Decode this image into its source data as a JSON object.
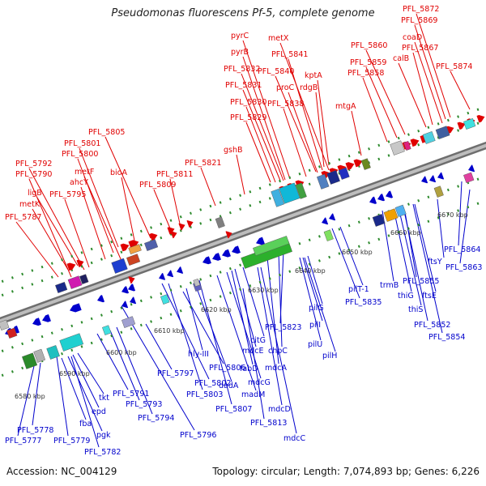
{
  "title": "Pseudomonas fluorescens Pf-5, complete genome",
  "footer": {
    "accession": "Accession: NC_004129",
    "summary": "Topology: circular; Length: 7,074,893 bp; Genes: 6,226"
  },
  "colors": {
    "top_strand": "#e00000",
    "bottom_strand": "#0000cc",
    "backbone": "#9a9a9a",
    "dots": "#2e8b2e"
  },
  "kbp_labels": [
    "6580 kbp",
    "6590 kbp",
    "6600 kbp",
    "6610 kbp",
    "6620 kbp",
    "6630 kbp",
    "6640 kbp",
    "6650 kbp",
    "6660 kbp",
    "6670 kbp"
  ],
  "top_labels": [
    "PFL_5787",
    "metK",
    "ligB",
    "PFL_5790",
    "PFL_5792",
    "PFL_5795",
    "ahcY",
    "metF",
    "PFL_5800",
    "PFL_5801",
    "PFL_5805",
    "bioA",
    "PFL_5809",
    "PFL_5811",
    "PFL_5821",
    "gshB",
    "PFL_5829",
    "PFL_5830",
    "PFL_5831",
    "PFL_5832",
    "pyrB",
    "pyrC",
    "PFL_5838",
    "proC",
    "PFL_5840",
    "PFL_5841",
    "metX",
    "rdgB",
    "kptA",
    "mtgA",
    "PFL_5858",
    "PFL_5859",
    "PFL_5860",
    "calB",
    "PFL_5867",
    "coaD",
    "PFL_5869",
    "PFL_5872",
    "PFL_5874"
  ],
  "bottom_labels": [
    "PFL_5777",
    "PFL_5778",
    "PFL_5779",
    "fba",
    "pgk",
    "PFL_5782",
    "epd",
    "tkt",
    "PFL_5791",
    "PFL_5793",
    "PFL_5794",
    "PFL_5796",
    "PFL_5797",
    "PFL_5802",
    "PFL_5803",
    "PFL_5806",
    "hly-III",
    "dadA",
    "PFL_5807",
    "madM",
    "mdcG",
    "fabD",
    "mdcE",
    "citG",
    "PFL_5813",
    "mdcD",
    "mdcC",
    "mdcA",
    "chpC",
    "PFL_5823",
    "pilU",
    "pilH",
    "pilI",
    "pilG",
    "PFL_5835",
    "pilT-1",
    "trmB",
    "thiG",
    "thiS",
    "PFL_5852",
    "PFL_5854",
    "PFL_5855",
    "ftsE",
    "ftsY",
    "PFL_5863",
    "PFL_5864"
  ]
}
